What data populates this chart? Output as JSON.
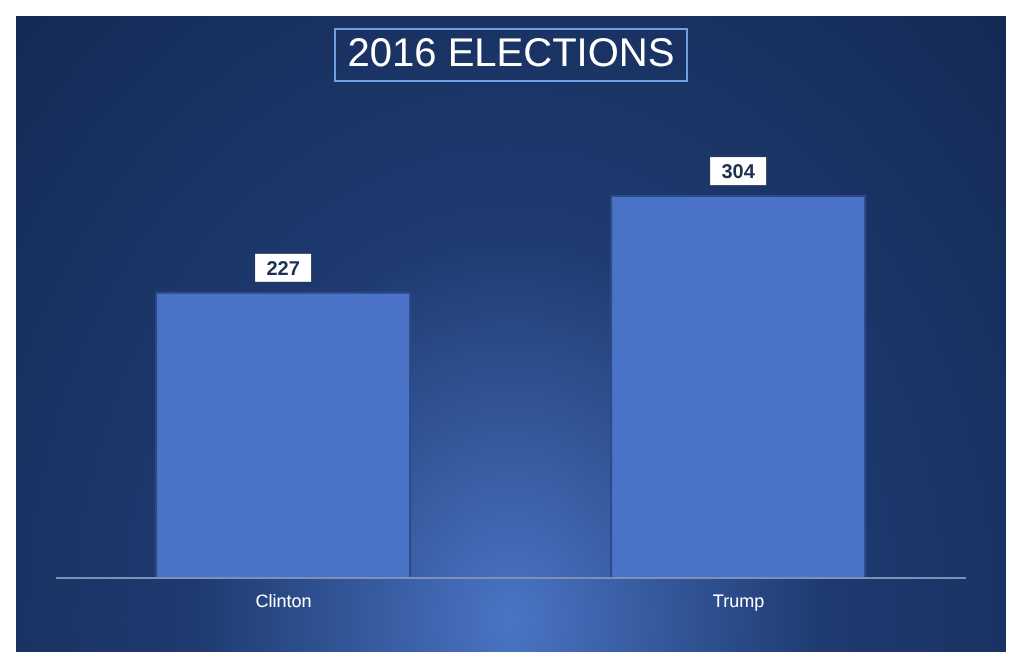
{
  "chart_data": {
    "type": "bar",
    "title": "2016 ELECTIONS",
    "categories": [
      "Clinton",
      "Trump"
    ],
    "values": [
      227,
      304
    ],
    "color": "#4a72c6",
    "data_labels": true
  }
}
